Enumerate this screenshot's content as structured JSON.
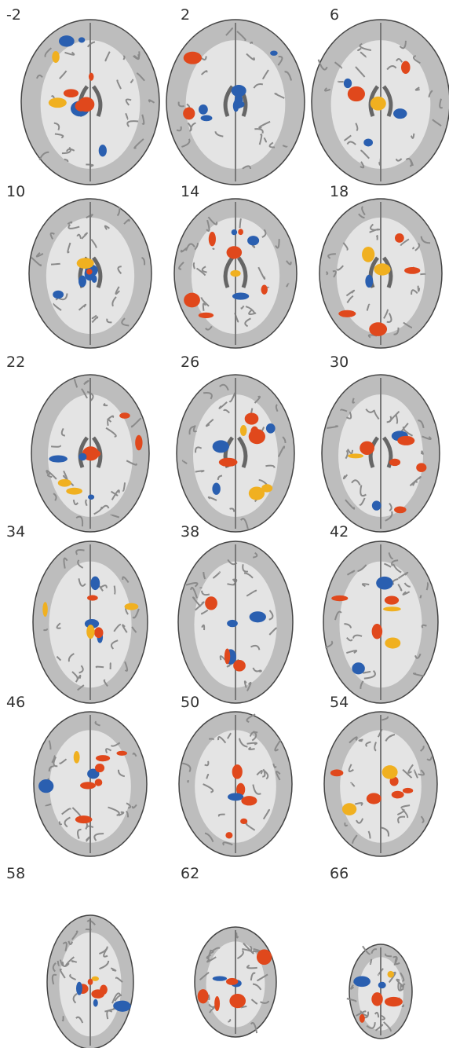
{
  "panels": [
    {
      "label": "-2"
    },
    {
      "label": "2"
    },
    {
      "label": "6"
    },
    {
      "label": "10"
    },
    {
      "label": "14"
    },
    {
      "label": "18"
    },
    {
      "label": "22"
    },
    {
      "label": "26"
    },
    {
      "label": "30"
    },
    {
      "label": "34"
    },
    {
      "label": "38"
    },
    {
      "label": "42"
    },
    {
      "label": "46"
    },
    {
      "label": "50"
    },
    {
      "label": "54"
    },
    {
      "label": "58"
    },
    {
      "label": "62"
    },
    {
      "label": "66"
    }
  ]
}
